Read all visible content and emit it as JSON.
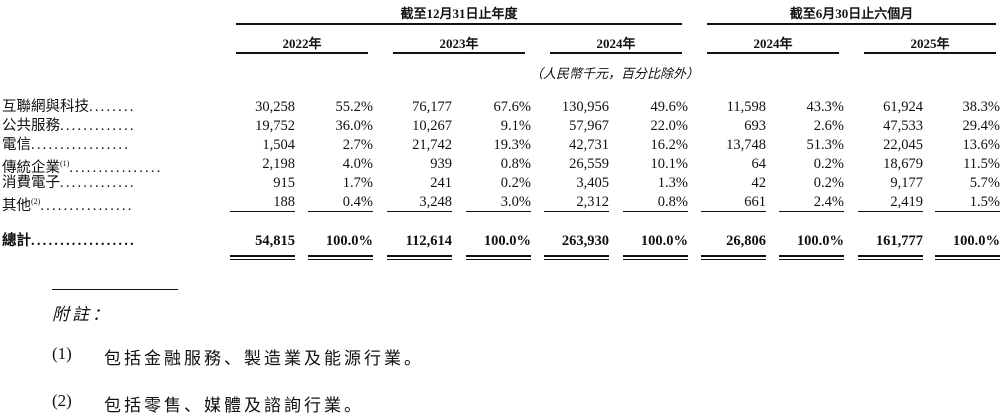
{
  "header": {
    "group_fy": "截至12月31日止年度",
    "group_h1": "截至6月30日止六個月",
    "years": [
      "2022年",
      "2023年",
      "2024年",
      "2024年",
      "2025年"
    ],
    "unit_note": "（人民幣千元，百分比除外）"
  },
  "rows": [
    {
      "label": "互聯網與科技",
      "sup": "",
      "values": [
        "30,258",
        "55.2%",
        "76,177",
        "67.6%",
        "130,956",
        "49.6%",
        "11,598",
        "43.3%",
        "61,924",
        "38.3%"
      ]
    },
    {
      "label": "公共服務",
      "sup": "",
      "values": [
        "19,752",
        "36.0%",
        "10,267",
        "9.1%",
        "57,967",
        "22.0%",
        "693",
        "2.6%",
        "47,533",
        "29.4%"
      ]
    },
    {
      "label": "電信",
      "sup": "",
      "values": [
        "1,504",
        "2.7%",
        "21,742",
        "19.3%",
        "42,731",
        "16.2%",
        "13,748",
        "51.3%",
        "22,045",
        "13.6%"
      ]
    },
    {
      "label": "傳統企業",
      "sup": "(1)",
      "values": [
        "2,198",
        "4.0%",
        "939",
        "0.8%",
        "26,559",
        "10.1%",
        "64",
        "0.2%",
        "18,679",
        "11.5%"
      ]
    },
    {
      "label": "消費電子",
      "sup": "",
      "values": [
        "915",
        "1.7%",
        "241",
        "0.2%",
        "3,405",
        "1.3%",
        "42",
        "0.2%",
        "9,177",
        "5.7%"
      ]
    },
    {
      "label": "其他",
      "sup": "(2)",
      "values": [
        "188",
        "0.4%",
        "3,248",
        "3.0%",
        "2,312",
        "0.8%",
        "661",
        "2.4%",
        "2,419",
        "1.5%"
      ]
    }
  ],
  "total": {
    "label": "總計",
    "values": [
      "54,815",
      "100.0%",
      "112,614",
      "100.0%",
      "263,930",
      "100.0%",
      "26,806",
      "100.0%",
      "161,777",
      "100.0%"
    ]
  },
  "notes": {
    "title": "附註：",
    "items": [
      {
        "marker": "(1)",
        "text": "包括金融服務、製造業及能源行業。"
      },
      {
        "marker": "(2)",
        "text": "包括零售、媒體及諮詢行業。"
      }
    ]
  }
}
